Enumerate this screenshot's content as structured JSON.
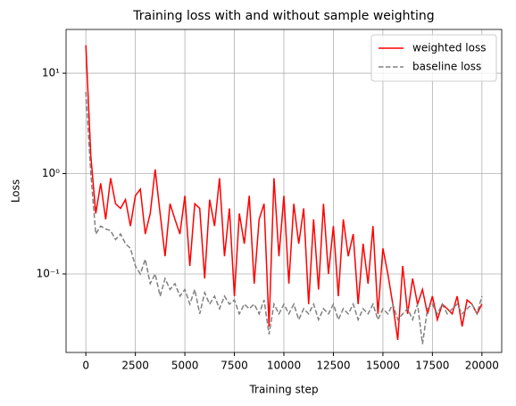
{
  "chart_data": {
    "type": "line",
    "title": "Training loss with and without sample weighting",
    "xlabel": "Training step",
    "ylabel": "Loss",
    "yscale": "log",
    "grid": true,
    "legend": "upper right",
    "xlim": [
      -1000,
      21000
    ],
    "ylim": [
      0.0165,
      27.3
    ],
    "xticks": [
      0,
      2500,
      5000,
      7500,
      10000,
      12500,
      15000,
      17500,
      20000
    ],
    "yticks": [
      {
        "value": 0.1,
        "label": "10⁻¹"
      },
      {
        "value": 1,
        "label": "10⁰"
      },
      {
        "value": 10,
        "label": "10¹"
      }
    ],
    "x": [
      0,
      250,
      500,
      750,
      1000,
      1250,
      1500,
      1750,
      2000,
      2250,
      2500,
      2750,
      3000,
      3250,
      3500,
      3750,
      4000,
      4250,
      4500,
      4750,
      5000,
      5250,
      5500,
      5750,
      6000,
      6250,
      6500,
      6750,
      7000,
      7250,
      7500,
      7750,
      8000,
      8250,
      8500,
      8750,
      9000,
      9250,
      9500,
      9750,
      10000,
      10250,
      10500,
      10750,
      11000,
      11250,
      11500,
      11750,
      12000,
      12250,
      12500,
      12750,
      13000,
      13250,
      13500,
      13750,
      14000,
      14250,
      14500,
      14750,
      15000,
      15250,
      15500,
      15750,
      16000,
      16250,
      16500,
      16750,
      17000,
      17250,
      17500,
      17750,
      18000,
      18250,
      18500,
      18750,
      19000,
      19250,
      19500,
      19750,
      20000
    ],
    "series": [
      {
        "name": "weighted loss",
        "color": "#ff0000",
        "dash": "solid",
        "values": [
          19,
          1.5,
          0.4,
          0.8,
          0.35,
          0.9,
          0.5,
          0.45,
          0.55,
          0.3,
          0.6,
          0.7,
          0.25,
          0.4,
          1.1,
          0.4,
          0.15,
          0.5,
          0.35,
          0.25,
          0.6,
          0.12,
          0.5,
          0.45,
          0.09,
          0.55,
          0.3,
          0.9,
          0.15,
          0.45,
          0.06,
          0.4,
          0.2,
          0.6,
          0.08,
          0.35,
          0.5,
          0.03,
          0.9,
          0.15,
          0.6,
          0.08,
          0.5,
          0.2,
          0.45,
          0.05,
          0.35,
          0.07,
          0.5,
          0.1,
          0.3,
          0.06,
          0.35,
          0.15,
          0.25,
          0.05,
          0.2,
          0.08,
          0.3,
          0.04,
          0.18,
          0.1,
          0.05,
          0.022,
          0.12,
          0.04,
          0.09,
          0.05,
          0.07,
          0.04,
          0.06,
          0.035,
          0.05,
          0.045,
          0.04,
          0.06,
          0.03,
          0.055,
          0.05,
          0.04,
          0.05
        ]
      },
      {
        "name": "baseline loss",
        "color": "#808080",
        "dash": "dashed",
        "values": [
          6.5,
          1.0,
          0.25,
          0.3,
          0.28,
          0.27,
          0.22,
          0.25,
          0.2,
          0.18,
          0.12,
          0.1,
          0.14,
          0.08,
          0.1,
          0.06,
          0.09,
          0.07,
          0.08,
          0.06,
          0.07,
          0.05,
          0.07,
          0.04,
          0.065,
          0.05,
          0.06,
          0.045,
          0.06,
          0.05,
          0.055,
          0.04,
          0.05,
          0.045,
          0.05,
          0.04,
          0.055,
          0.025,
          0.05,
          0.04,
          0.05,
          0.04,
          0.05,
          0.035,
          0.045,
          0.04,
          0.05,
          0.035,
          0.045,
          0.04,
          0.05,
          0.035,
          0.045,
          0.04,
          0.05,
          0.035,
          0.045,
          0.04,
          0.05,
          0.035,
          0.045,
          0.04,
          0.05,
          0.035,
          0.04,
          0.045,
          0.035,
          0.05,
          0.02,
          0.045,
          0.05,
          0.04,
          0.05,
          0.04,
          0.045,
          0.05,
          0.04,
          0.045,
          0.05,
          0.04,
          0.06
        ]
      }
    ]
  }
}
